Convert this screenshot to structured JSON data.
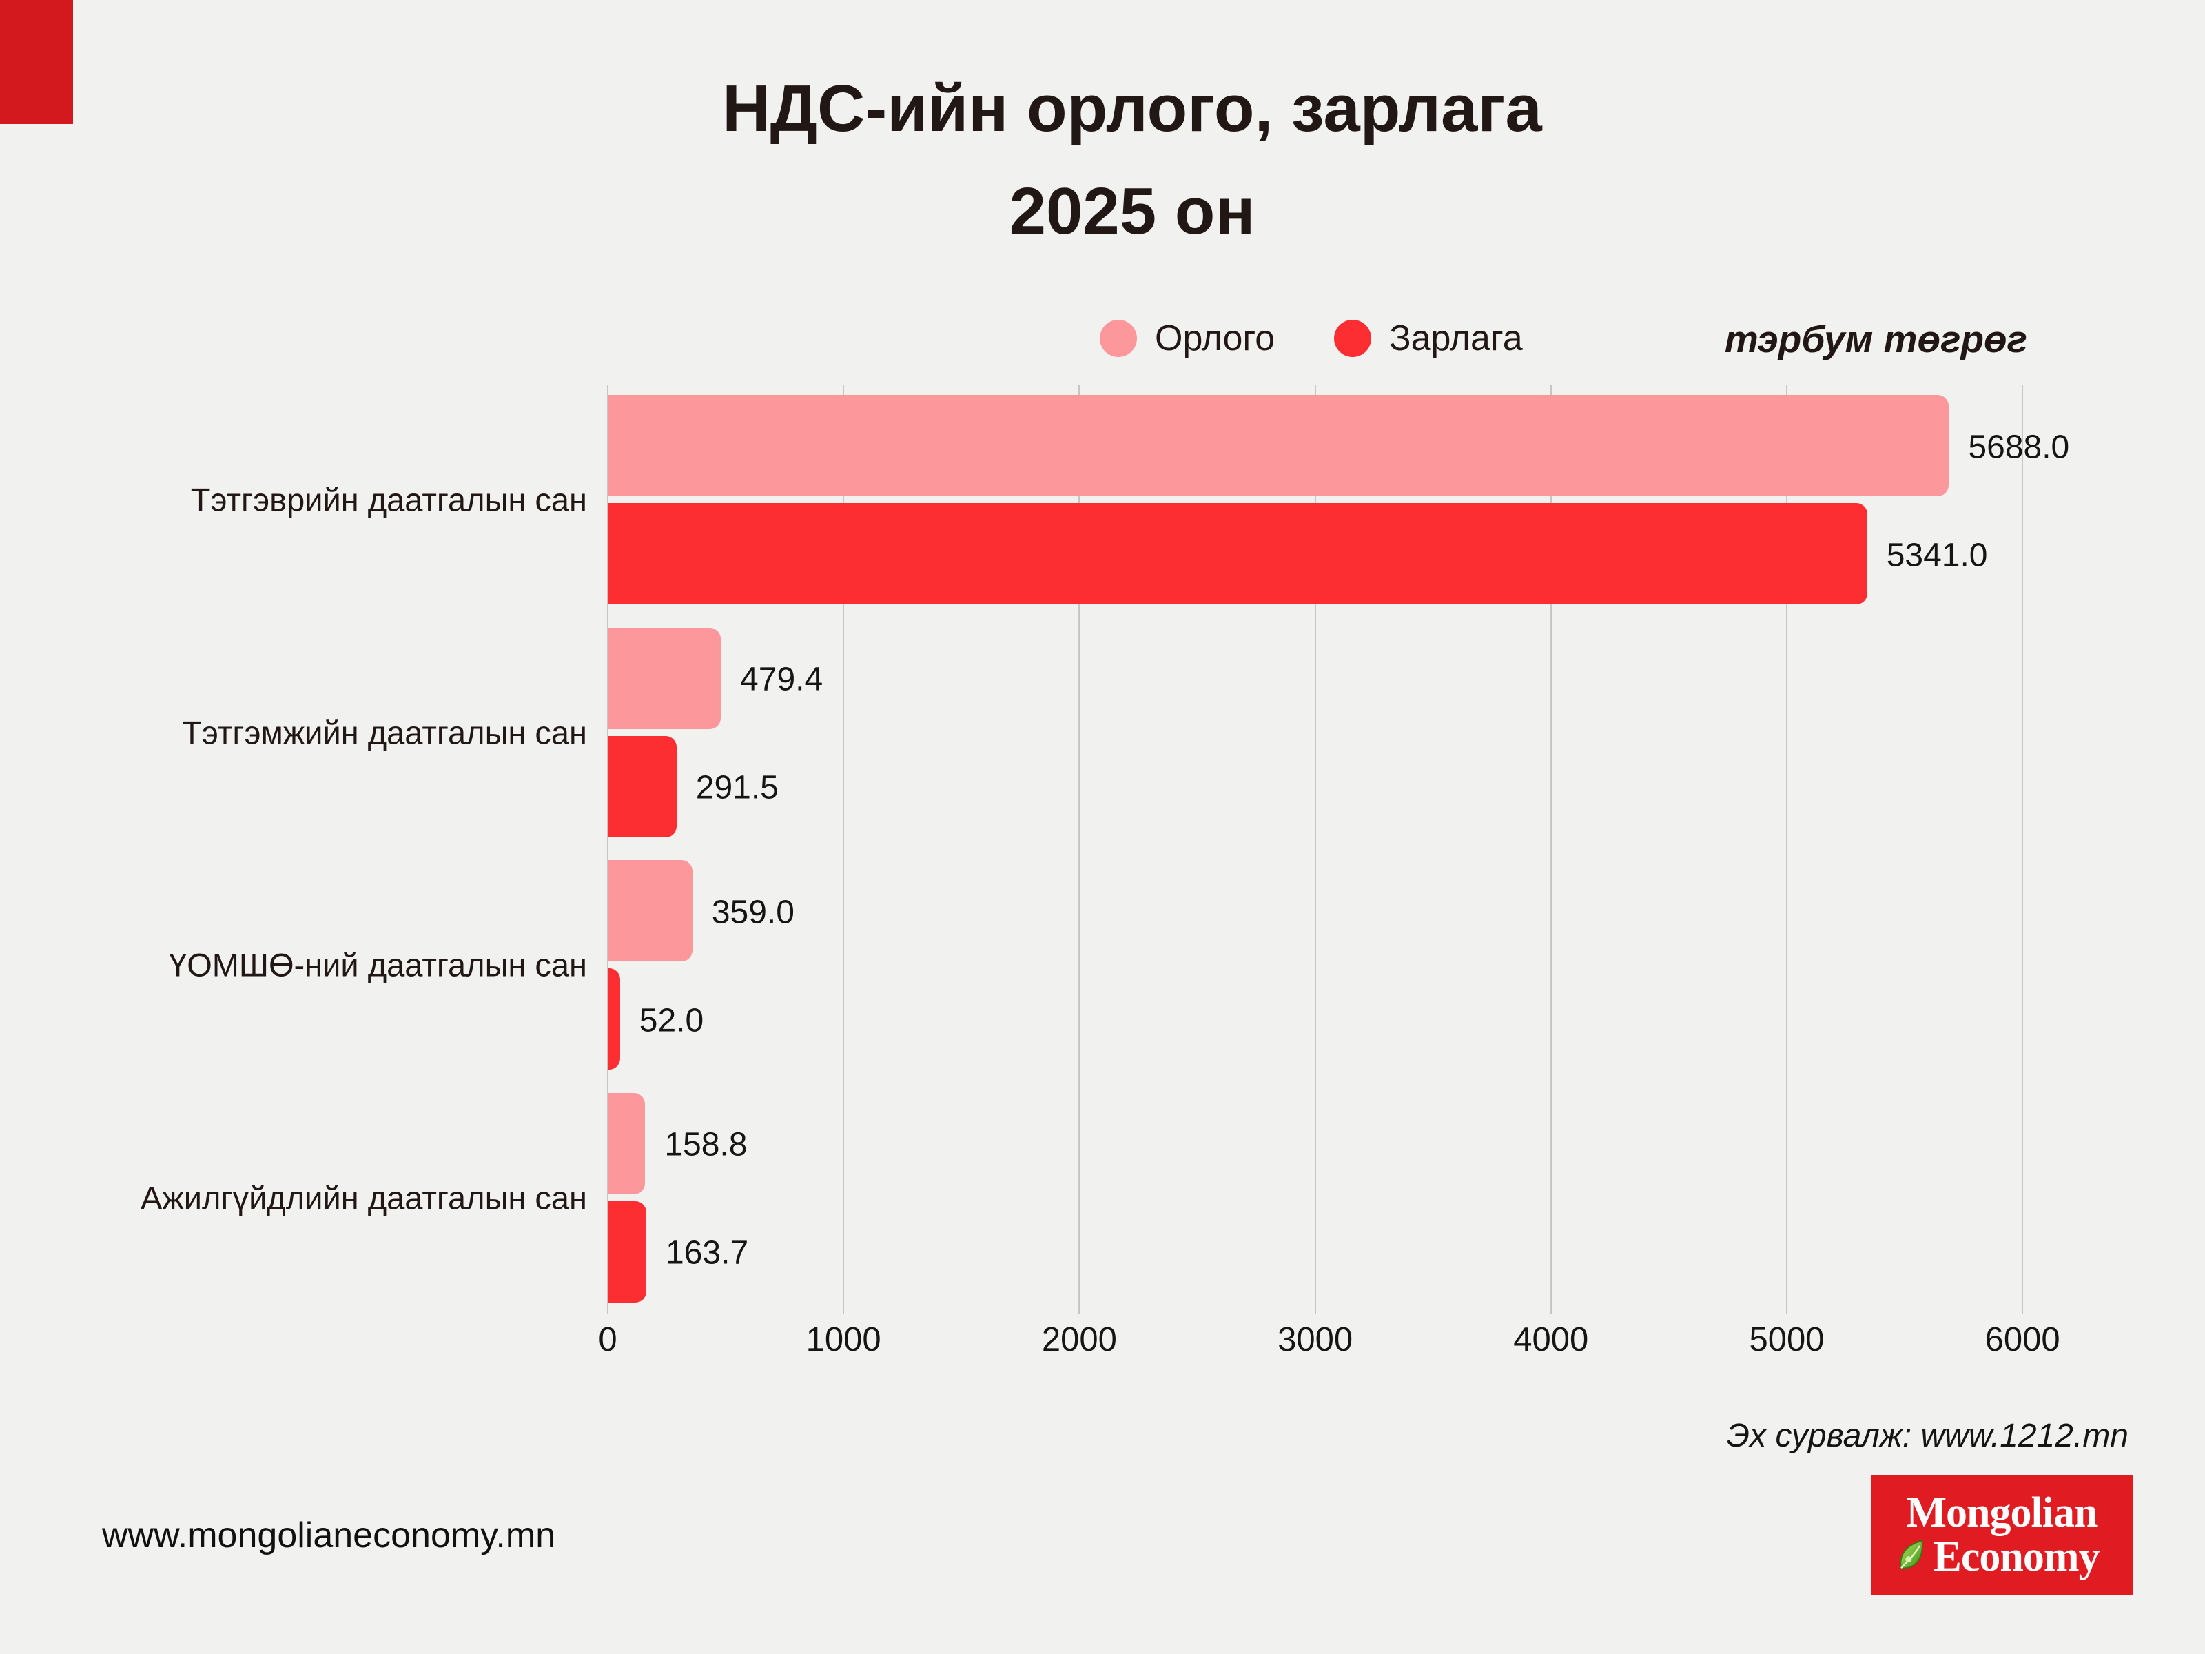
{
  "page": {
    "background": "#f1f1f0",
    "accent_block_color": "#d3191e",
    "text_color": "#211816"
  },
  "header": {
    "title_line1": "НДС-ийн орлого, зарлага",
    "title_line2": "2025 он"
  },
  "legend": {
    "items": [
      {
        "label": "Орлого",
        "color": "#fc989c"
      },
      {
        "label": "Зарлага",
        "color": "#fc2e31"
      }
    ],
    "unit_label": "тэрбум төгрөг"
  },
  "chart_data": {
    "type": "bar",
    "orientation": "horizontal",
    "title": "НДС-ийн орлого, зарлага 2025 он",
    "unit": "тэрбум төгрөг",
    "categories": [
      "Тэтгэврийн даатгалын сан",
      "Тэтгэмжийн даатгалын сан",
      "ҮОМШӨ-ний даатгалын сан",
      "Ажилгүйдлийн даатгалын сан"
    ],
    "series": [
      {
        "name": "Орлого",
        "color": "#fc989c",
        "values": [
          5688.0,
          479.4,
          359.0,
          158.8
        ]
      },
      {
        "name": "Зарлага",
        "color": "#fc2e31",
        "values": [
          5341.0,
          291.5,
          52.0,
          163.7
        ]
      }
    ],
    "value_label_decimals": 1,
    "xlim": [
      0,
      6000
    ],
    "xticks": [
      0,
      1000,
      2000,
      3000,
      4000,
      5000,
      6000
    ],
    "grid": true,
    "legend_position": "top"
  },
  "footer": {
    "source": "Эх сурвалж: www.1212.mn",
    "website": "www.mongolianeconomy.mn",
    "logo": {
      "line1": "Mongolian",
      "line2": "Economy",
      "background": "#e11b22",
      "leaf_color_light": "#b6e355",
      "leaf_color_dark": "#3a8f1d"
    }
  }
}
